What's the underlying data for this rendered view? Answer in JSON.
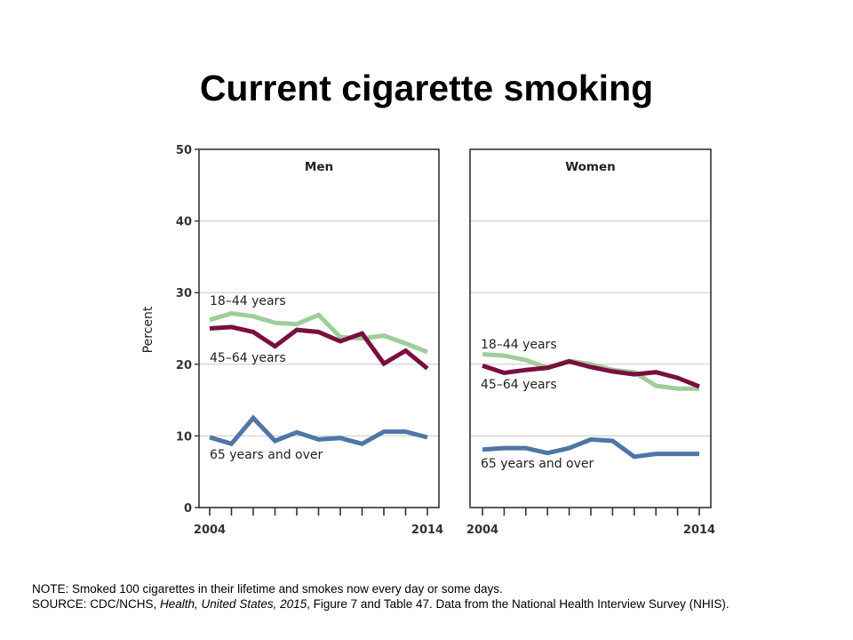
{
  "title": "Current cigarette smoking",
  "ylabel": "Percent",
  "notes": {
    "note": "NOTE: Smoked 100 cigarettes in their lifetime and smokes now every day or some days.",
    "source_prefix": "SOURCE: CDC/NCHS, ",
    "source_italic": "Health, United States, 2015",
    "source_suffix": ", Figure 7 and Table 47.  Data from the National Health Interview Survey (NHIS)."
  },
  "colors": {
    "18-44": "#9fcd9b",
    "45-64": "#7a0f3f",
    "65+": "#4e76a6"
  },
  "chart_data": [
    {
      "type": "line",
      "title": "Men",
      "x": [
        2004,
        2005,
        2006,
        2007,
        2008,
        2009,
        2010,
        2011,
        2012,
        2013,
        2014
      ],
      "x_tick_labels": [
        "2004",
        "2014"
      ],
      "ylim": [
        0,
        50
      ],
      "yticks": [
        0,
        10,
        20,
        30,
        40,
        50
      ],
      "ylabel": "Percent",
      "grid": true,
      "series": [
        {
          "name": "18–44 years",
          "key": "18-44",
          "values": [
            26.2,
            27.1,
            26.7,
            25.8,
            25.6,
            26.9,
            23.8,
            23.6,
            24.0,
            22.9,
            21.7
          ]
        },
        {
          "name": "45–64 years",
          "key": "45-64",
          "values": [
            25.0,
            25.2,
            24.5,
            22.5,
            24.8,
            24.5,
            23.2,
            24.3,
            20.1,
            21.9,
            19.4
          ]
        },
        {
          "name": "65 years and over",
          "key": "65+",
          "values": [
            9.8,
            8.9,
            12.5,
            9.3,
            10.5,
            9.5,
            9.7,
            8.9,
            10.6,
            10.6,
            9.8
          ]
        }
      ]
    },
    {
      "type": "line",
      "title": "Women",
      "x": [
        2004,
        2005,
        2006,
        2007,
        2008,
        2009,
        2010,
        2011,
        2012,
        2013,
        2014
      ],
      "x_tick_labels": [
        "2004",
        "2014"
      ],
      "ylim": [
        0,
        50
      ],
      "yticks": [
        0,
        10,
        20,
        30,
        40,
        50
      ],
      "grid": true,
      "series": [
        {
          "name": "18–44 years",
          "key": "18-44",
          "values": [
            21.4,
            21.2,
            20.6,
            19.5,
            20.5,
            20.0,
            19.2,
            18.9,
            17.0,
            16.6,
            16.6
          ]
        },
        {
          "name": "45–64 years",
          "key": "45-64",
          "values": [
            19.8,
            18.8,
            19.2,
            19.5,
            20.4,
            19.6,
            19.0,
            18.6,
            18.9,
            18.1,
            16.9
          ]
        },
        {
          "name": "65 years and over",
          "key": "65+",
          "values": [
            8.1,
            8.3,
            8.3,
            7.6,
            8.3,
            9.5,
            9.3,
            7.1,
            7.5,
            7.5,
            7.5
          ]
        }
      ]
    }
  ]
}
